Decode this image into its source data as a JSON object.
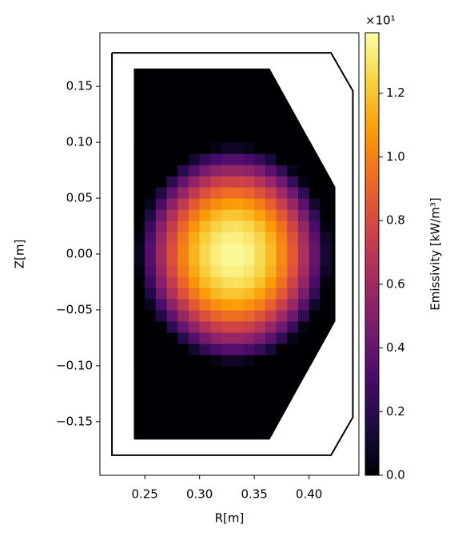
{
  "chart_data": {
    "type": "heatmap",
    "xlabel": "R[m]",
    "ylabel": "Z[m]",
    "xlim": [
      0.209,
      0.4455
    ],
    "ylim": [
      -0.198,
      0.198
    ],
    "xticks": [
      0.25,
      {
        "value": 0.3,
        "label": "0.30"
      },
      0.35,
      {
        "value": 0.4,
        "label": "0.40"
      }
    ],
    "yticks": [
      {
        "value": -0.15,
        "label": "−0.15"
      },
      {
        "value": -0.1,
        "label": "−0.10"
      },
      {
        "value": -0.05,
        "label": "−0.05"
      },
      {
        "value": 0,
        "label": "0.00"
      },
      0.05,
      {
        "value": 0.1,
        "label": "0.10"
      },
      0.15
    ],
    "colorbar": {
      "label": "Emissivity [kW/m³]",
      "offset_label": "×10¹",
      "clim": [
        0,
        1.39
      ],
      "ticks": [
        {
          "value": 0,
          "label": "0.0"
        },
        0.2,
        0.4,
        0.6,
        0.8,
        {
          "value": 1,
          "label": "1.0"
        },
        1.2
      ]
    },
    "colormap": [
      "#000004",
      "#1b0c41",
      "#4a0c6b",
      "#781c6d",
      "#a52c60",
      "#cf4446",
      "#ed6925",
      "#fb9b06",
      "#f7d13d",
      "#fcffa4"
    ],
    "wall": {
      "color": "#000000",
      "R": [
        0.22,
        0.42,
        0.44,
        0.44,
        0.42,
        0.22,
        0.22
      ],
      "Z": [
        0.18,
        0.18,
        0.146,
        -0.146,
        -0.18,
        -0.18,
        0.18
      ]
    },
    "region": {
      "R": [
        0.24,
        0.24,
        0.364,
        0.424,
        0.424,
        0.364
      ],
      "Z": [
        -0.166,
        0.166,
        0.166,
        0.06,
        -0.06,
        -0.166
      ],
      "value": 0
    },
    "x": [
      0.245,
      0.255,
      0.265,
      0.275,
      0.285,
      0.295,
      0.305,
      0.315,
      0.325,
      0.335,
      0.345,
      0.355,
      0.365,
      0.375,
      0.385,
      0.395,
      0.405,
      0.415
    ],
    "y": [
      -0.095,
      -0.085,
      -0.075,
      -0.065,
      -0.055,
      -0.045,
      -0.035,
      -0.025,
      -0.015,
      -0.005,
      0.005,
      0.015,
      0.025,
      0.035,
      0.045,
      0.055,
      0.065,
      0.075,
      0.085,
      0.095
    ],
    "values": [
      [
        0,
        0,
        0,
        0,
        0,
        0,
        0,
        0.04,
        0.08,
        0.08,
        0.05,
        0,
        0,
        0,
        0,
        0,
        0,
        0
      ],
      [
        0,
        0,
        0,
        0,
        0,
        0.11,
        0.22,
        0.3,
        0.34,
        0.34,
        0.31,
        0.24,
        0.14,
        0,
        0,
        0,
        0,
        0
      ],
      [
        0,
        0,
        0,
        0.01,
        0.19,
        0.34,
        0.45,
        0.53,
        0.57,
        0.57,
        0.54,
        0.47,
        0.37,
        0.23,
        0.05,
        0,
        0,
        0
      ],
      [
        0,
        0,
        0,
        0.21,
        0.4,
        0.54,
        0.65,
        0.73,
        0.77,
        0.77,
        0.74,
        0.67,
        0.57,
        0.43,
        0.25,
        0.04,
        0,
        0
      ],
      [
        0,
        0,
        0.17,
        0.39,
        0.57,
        0.71,
        0.82,
        0.9,
        0.94,
        0.94,
        0.91,
        0.84,
        0.74,
        0.6,
        0.43,
        0.22,
        0,
        0
      ],
      [
        0,
        0.06,
        0.31,
        0.53,
        0.71,
        0.86,
        0.97,
        1.04,
        1.08,
        1.09,
        1.05,
        0.99,
        0.88,
        0.74,
        0.57,
        0.36,
        0.11,
        0
      ],
      [
        0,
        0.17,
        0.43,
        0.65,
        0.83,
        0.97,
        1.08,
        1.16,
        1.2,
        1.2,
        1.17,
        1.1,
        1,
        0.86,
        0.68,
        0.47,
        0.23,
        0
      ],
      [
        0,
        0.26,
        0.51,
        0.73,
        0.91,
        1.06,
        1.17,
        1.24,
        1.28,
        1.29,
        1.26,
        1.19,
        1.08,
        0.95,
        0.77,
        0.56,
        0.31,
        0.03
      ],
      [
        0.03,
        0.32,
        0.57,
        0.79,
        0.97,
        1.12,
        1.23,
        1.3,
        1.34,
        1.34,
        1.31,
        1.25,
        1.14,
        1,
        0.83,
        0.62,
        0.37,
        0.09
      ],
      [
        0.06,
        0.35,
        0.6,
        0.82,
        1,
        1.15,
        1.26,
        1.33,
        1.37,
        1.37,
        1.34,
        1.27,
        1.17,
        1.03,
        0.86,
        0.65,
        0.4,
        0.12
      ],
      [
        0.06,
        0.35,
        0.6,
        0.82,
        1,
        1.15,
        1.26,
        1.33,
        1.37,
        1.37,
        1.34,
        1.27,
        1.17,
        1.03,
        0.86,
        0.65,
        0.4,
        0.12
      ],
      [
        0.03,
        0.32,
        0.57,
        0.79,
        0.97,
        1.12,
        1.23,
        1.3,
        1.34,
        1.34,
        1.31,
        1.25,
        1.14,
        1,
        0.83,
        0.62,
        0.37,
        0.09
      ],
      [
        0,
        0.26,
        0.51,
        0.73,
        0.91,
        1.06,
        1.17,
        1.24,
        1.28,
        1.29,
        1.26,
        1.19,
        1.08,
        0.95,
        0.77,
        0.56,
        0.31,
        0.03
      ],
      [
        0,
        0.17,
        0.43,
        0.65,
        0.83,
        0.97,
        1.08,
        1.16,
        1.2,
        1.2,
        1.17,
        1.1,
        1,
        0.86,
        0.68,
        0.47,
        0.23,
        0
      ],
      [
        0,
        0.06,
        0.31,
        0.53,
        0.71,
        0.86,
        0.97,
        1.04,
        1.08,
        1.09,
        1.05,
        0.99,
        0.88,
        0.74,
        0.57,
        0.36,
        0.11,
        0
      ],
      [
        0,
        0,
        0.17,
        0.39,
        0.57,
        0.71,
        0.82,
        0.9,
        0.94,
        0.94,
        0.91,
        0.84,
        0.74,
        0.6,
        0.43,
        0.22,
        0,
        0
      ],
      [
        0,
        0,
        0,
        0.21,
        0.4,
        0.54,
        0.65,
        0.73,
        0.77,
        0.77,
        0.74,
        0.67,
        0.57,
        0.43,
        0.25,
        0.04,
        0,
        0
      ],
      [
        0,
        0,
        0,
        0.01,
        0.19,
        0.34,
        0.45,
        0.53,
        0.57,
        0.57,
        0.54,
        0.47,
        0.37,
        0.23,
        0.05,
        0,
        0,
        0
      ],
      [
        0,
        0,
        0,
        0,
        0,
        0.11,
        0.22,
        0.3,
        0.34,
        0.34,
        0.31,
        0.24,
        0.14,
        0,
        0,
        0,
        0,
        0
      ],
      [
        0,
        0,
        0,
        0,
        0,
        0,
        0,
        0.04,
        0.08,
        0.08,
        0.05,
        0,
        0,
        0,
        0,
        0,
        0,
        0
      ]
    ]
  }
}
